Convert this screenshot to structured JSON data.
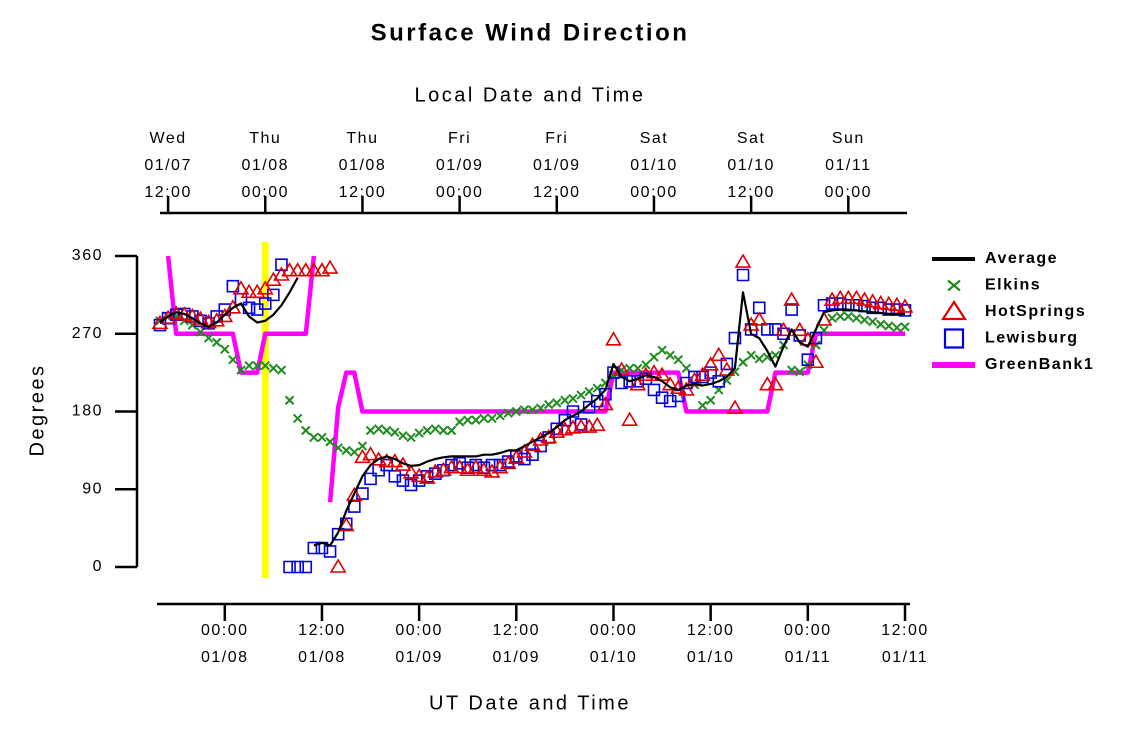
{
  "chart_data": {
    "type": "line",
    "title": "Surface Wind Direction",
    "x2_label": "Local Date and Time",
    "x_label": "UT Date and Time",
    "y_label": "Degrees",
    "xlim": [
      "01/07 16:00",
      "01/11 12:00"
    ],
    "ylim": [
      0,
      360
    ],
    "yticks": [
      0,
      90,
      180,
      270,
      360
    ],
    "xticks": [
      {
        "value": "01/08 00:00",
        "label": [
          "00:00",
          "01/08"
        ]
      },
      {
        "value": "01/08 12:00",
        "label": [
          "12:00",
          "01/08"
        ]
      },
      {
        "value": "01/09 00:00",
        "label": [
          "00:00",
          "01/09"
        ]
      },
      {
        "value": "01/09 12:00",
        "label": [
          "12:00",
          "01/09"
        ]
      },
      {
        "value": "01/10 00:00",
        "label": [
          "00:00",
          "01/10"
        ]
      },
      {
        "value": "01/10 12:00",
        "label": [
          "12:00",
          "01/10"
        ]
      },
      {
        "value": "01/11 00:00",
        "label": [
          "00:00",
          "01/11"
        ]
      },
      {
        "value": "01/11 12:00",
        "label": [
          "12:00",
          "01/11"
        ]
      }
    ],
    "x2ticks": [
      {
        "value": "01/07 17:00",
        "label": [
          "Wed",
          "01/07",
          "12:00"
        ]
      },
      {
        "value": "01/08 05:00",
        "label": [
          "Thu",
          "01/08",
          "00:00"
        ]
      },
      {
        "value": "01/08 17:00",
        "label": [
          "Thu",
          "01/08",
          "12:00"
        ]
      },
      {
        "value": "01/09 05:00",
        "label": [
          "Fri",
          "01/09",
          "00:00"
        ]
      },
      {
        "value": "01/09 17:00",
        "label": [
          "Fri",
          "01/09",
          "12:00"
        ]
      },
      {
        "value": "01/10 05:00",
        "label": [
          "Sat",
          "01/10",
          "00:00"
        ]
      },
      {
        "value": "01/10 17:00",
        "label": [
          "Sat",
          "01/10",
          "12:00"
        ]
      },
      {
        "value": "01/11 05:00",
        "label": [
          "Sun",
          "01/11",
          "00:00"
        ]
      }
    ],
    "vline": {
      "x": "01/08 05:00",
      "color": "#ffff00"
    },
    "legend": "right",
    "x": [
      "01/07 16:00",
      "01/07 17:00",
      "01/07 18:00",
      "01/07 19:00",
      "01/07 20:00",
      "01/07 21:00",
      "01/07 22:00",
      "01/07 23:00",
      "01/08 00:00",
      "01/08 01:00",
      "01/08 02:00",
      "01/08 03:00",
      "01/08 04:00",
      "01/08 05:00",
      "01/08 06:00",
      "01/08 07:00",
      "01/08 08:00",
      "01/08 09:00",
      "01/08 10:00",
      "01/08 11:00",
      "01/08 12:00",
      "01/08 13:00",
      "01/08 14:00",
      "01/08 15:00",
      "01/08 16:00",
      "01/08 17:00",
      "01/08 18:00",
      "01/08 19:00",
      "01/08 20:00",
      "01/08 21:00",
      "01/08 22:00",
      "01/08 23:00",
      "01/09 00:00",
      "01/09 01:00",
      "01/09 02:00",
      "01/09 03:00",
      "01/09 04:00",
      "01/09 05:00",
      "01/09 06:00",
      "01/09 07:00",
      "01/09 08:00",
      "01/09 09:00",
      "01/09 10:00",
      "01/09 11:00",
      "01/09 12:00",
      "01/09 13:00",
      "01/09 14:00",
      "01/09 15:00",
      "01/09 16:00",
      "01/09 17:00",
      "01/09 18:00",
      "01/09 19:00",
      "01/09 20:00",
      "01/09 21:00",
      "01/09 22:00",
      "01/09 23:00",
      "01/10 00:00",
      "01/10 01:00",
      "01/10 02:00",
      "01/10 03:00",
      "01/10 04:00",
      "01/10 05:00",
      "01/10 06:00",
      "01/10 07:00",
      "01/10 08:00",
      "01/10 09:00",
      "01/10 10:00",
      "01/10 11:00",
      "01/10 12:00",
      "01/10 13:00",
      "01/10 14:00",
      "01/10 15:00",
      "01/10 16:00",
      "01/10 17:00",
      "01/10 18:00",
      "01/10 19:00",
      "01/10 20:00",
      "01/10 21:00",
      "01/10 22:00",
      "01/10 23:00",
      "01/11 00:00",
      "01/11 01:00",
      "01/11 02:00",
      "01/11 03:00",
      "01/11 04:00",
      "01/11 05:00",
      "01/11 06:00",
      "01/11 07:00",
      "01/11 08:00",
      "01/11 09:00",
      "01/11 10:00",
      "01/11 11:00",
      "01/11 12:00"
    ],
    "series": [
      {
        "name": "Average",
        "color": "#000000",
        "marker": "line",
        "width": 2.2,
        "values": [
          283,
          290,
          295,
          293,
          288,
          282,
          278,
          283,
          292,
          300,
          305,
          290,
          283,
          285,
          292,
          303,
          318,
          335,
          null,
          25,
          28,
          25,
          40,
          65,
          85,
          105,
          118,
          125,
          128,
          125,
          120,
          117,
          118,
          122,
          125,
          127,
          128,
          128,
          128,
          128,
          130,
          130,
          132,
          135,
          135,
          140,
          145,
          150,
          155,
          162,
          170,
          175,
          180,
          188,
          195,
          205,
          235,
          220,
          215,
          218,
          222,
          220,
          215,
          208,
          205,
          210,
          212,
          210,
          212,
          215,
          220,
          230,
          318,
          270,
          265,
          250,
          232,
          255,
          275,
          260,
          255,
          275,
          295,
          297,
          298,
          298,
          297,
          296,
          295,
          294,
          293,
          293,
          293
        ]
      },
      {
        "name": "Elkins",
        "color": "#1e8c1e",
        "marker": "x",
        "values": [
          285,
          290,
          290,
          285,
          280,
          272,
          265,
          260,
          252,
          240,
          228,
          233,
          233,
          233,
          230,
          228,
          193,
          172,
          158,
          150,
          150,
          145,
          138,
          135,
          133,
          140,
          158,
          160,
          158,
          156,
          152,
          150,
          155,
          158,
          160,
          158,
          158,
          168,
          170,
          170,
          172,
          172,
          175,
          178,
          180,
          182,
          182,
          184,
          188,
          190,
          193,
          195,
          199,
          203,
          207,
          213,
          222,
          228,
          230,
          230,
          234,
          243,
          251,
          245,
          240,
          230,
          211,
          187,
          193,
          205,
          216,
          226,
          237,
          245,
          241,
          243,
          245,
          257,
          228,
          226,
          234,
          257,
          274,
          288,
          290,
          290,
          288,
          286,
          284,
          281,
          279,
          277,
          278
        ]
      },
      {
        "name": "HotSprings",
        "color": "#e00000",
        "marker": "triangle",
        "values": [
          282,
          288,
          293,
          292,
          290,
          287,
          283,
          285,
          290,
          300,
          322,
          318,
          318,
          322,
          332,
          338,
          343,
          343,
          343,
          343,
          343,
          346,
          0,
          48,
          83,
          127,
          130,
          124,
          122,
          122,
          118,
          109,
          105,
          103,
          110,
          112,
          115,
          115,
          112,
          115,
          112,
          110,
          115,
          120,
          126,
          133,
          141,
          147,
          150,
          156,
          159,
          161,
          162,
          162,
          164,
          188,
          263,
          228,
          170,
          211,
          222,
          225,
          222,
          211,
          207,
          205,
          216,
          222,
          234,
          245,
          228,
          184,
          353,
          280,
          286,
          211,
          211,
          274,
          309,
          274,
          263,
          237,
          286,
          309,
          311,
          311,
          311,
          309,
          307,
          305,
          304,
          303,
          301
        ]
      },
      {
        "name": "Lewisburg",
        "color": "#0000e0",
        "marker": "square",
        "values": [
          280,
          288,
          292,
          293,
          290,
          285,
          282,
          290,
          298,
          325,
          310,
          300,
          298,
          305,
          315,
          350,
          0,
          0,
          0,
          22,
          22,
          18,
          38,
          50,
          70,
          85,
          102,
          112,
          118,
          105,
          100,
          95,
          100,
          105,
          108,
          112,
          118,
          120,
          115,
          118,
          115,
          118,
          118,
          122,
          128,
          125,
          130,
          140,
          150,
          160,
          170,
          180,
          165,
          185,
          192,
          200,
          225,
          213,
          215,
          215,
          218,
          205,
          196,
          192,
          198,
          213,
          220,
          220,
          225,
          215,
          235,
          265,
          338,
          275,
          300,
          275,
          275,
          270,
          298,
          268,
          240,
          265,
          303,
          305,
          305,
          303,
          303,
          302,
          300,
          300,
          298,
          298,
          297
        ]
      },
      {
        "name": "GreenBank1",
        "color": "#ff00ff",
        "marker": "line",
        "width": 4.5,
        "values": [
          null,
          360,
          270,
          270,
          270,
          270,
          270,
          270,
          270,
          270,
          225,
          225,
          225,
          270,
          270,
          270,
          270,
          270,
          270,
          360,
          null,
          75,
          185,
          225,
          225,
          180,
          180,
          180,
          180,
          180,
          180,
          180,
          180,
          180,
          180,
          180,
          180,
          180,
          180,
          180,
          180,
          180,
          180,
          180,
          180,
          180,
          180,
          180,
          180,
          180,
          180,
          180,
          180,
          180,
          180,
          180,
          225,
          225,
          225,
          225,
          225,
          225,
          225,
          225,
          225,
          180,
          180,
          180,
          180,
          180,
          180,
          180,
          180,
          180,
          180,
          180,
          225,
          225,
          225,
          225,
          225,
          270,
          270,
          270,
          270,
          270,
          270,
          270,
          270,
          270,
          270,
          270,
          270
        ]
      }
    ]
  }
}
